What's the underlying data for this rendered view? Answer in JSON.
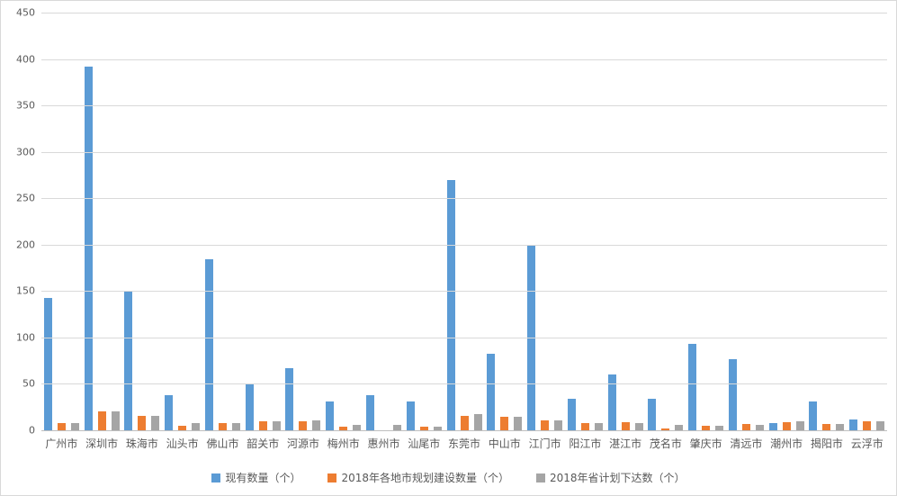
{
  "chart_data": {
    "type": "bar",
    "title": "",
    "categories": [
      "广州市",
      "深圳市",
      "珠海市",
      "汕头市",
      "佛山市",
      "韶关市",
      "河源市",
      "梅州市",
      "惠州市",
      "汕尾市",
      "东莞市",
      "中山市",
      "江门市",
      "阳江市",
      "湛江市",
      "茂名市",
      "肇庆市",
      "清远市",
      "潮州市",
      "揭阳市",
      "云浮市"
    ],
    "series": [
      {
        "name": "现有数量（个）",
        "color": "#5b9bd5",
        "values": [
          143,
          392,
          150,
          38,
          184,
          50,
          67,
          31,
          38,
          31,
          270,
          82,
          200,
          34,
          60,
          34,
          93,
          77,
          8,
          31,
          12
        ]
      },
      {
        "name": "2018年各地市规划建设数量（个）",
        "color": "#ed7d31",
        "values": [
          8,
          20,
          16,
          5,
          8,
          10,
          10,
          4,
          0,
          4,
          16,
          15,
          11,
          8,
          9,
          2,
          5,
          7,
          9,
          7,
          10
        ]
      },
      {
        "name": "2018年省计划下达数（个）",
        "color": "#a5a5a5",
        "values": [
          8,
          20,
          16,
          8,
          8,
          10,
          11,
          6,
          6,
          4,
          17,
          15,
          11,
          8,
          8,
          6,
          5,
          6,
          10,
          7,
          10
        ]
      }
    ],
    "xlabel": "",
    "ylabel": "",
    "ylim": [
      0,
      450
    ],
    "ytick_step": 50,
    "yticks": [
      "0",
      "50",
      "100",
      "150",
      "200",
      "250",
      "300",
      "350",
      "400",
      "450"
    ],
    "grid": "horizontal",
    "legend_position": "bottom"
  },
  "colors": {
    "background": "#ffffff",
    "gridline": "#d9d9d9",
    "axis_line": "#bfbfbf",
    "tick_text": "#595959",
    "series_blue": "#5b9bd5",
    "series_orange": "#ed7d31",
    "series_gray": "#a5a5a5"
  }
}
